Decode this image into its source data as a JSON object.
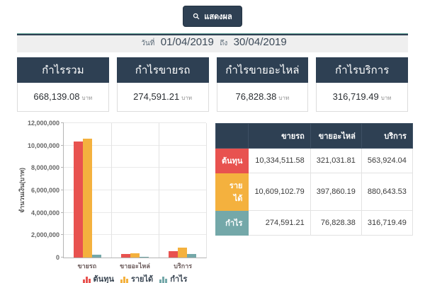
{
  "toolbar": {
    "show_button_label": "แสดงผล"
  },
  "date_bar": {
    "prefix": "วันที่",
    "start": "01/04/2019",
    "conjunction": "ถึง",
    "end": "30/04/2019"
  },
  "summary_cards": [
    {
      "title": "กำไรรวม",
      "value": "668,139.08",
      "unit": "บาท"
    },
    {
      "title": "กำไรขายรถ",
      "value": "274,591.21",
      "unit": "บาท"
    },
    {
      "title": "กำไรขายอะไหล่",
      "value": "76,828.38",
      "unit": "บาท"
    },
    {
      "title": "กำไรบริการ",
      "value": "316,719.49",
      "unit": "บาท"
    }
  ],
  "chart_data": {
    "type": "bar",
    "categories": [
      "ขายรถ",
      "ขายอะไหล่",
      "บริการ"
    ],
    "series": [
      {
        "name": "ต้นทุน",
        "color": "#e8524f",
        "values": [
          10334511.58,
          321031.81,
          563924.04
        ]
      },
      {
        "name": "รายได้",
        "color": "#f4b13e",
        "values": [
          10609102.79,
          397860.19,
          880643.53
        ]
      },
      {
        "name": "กำไร",
        "color": "#74a8a9",
        "values": [
          274591.21,
          76828.38,
          316719.49
        ]
      }
    ],
    "title": "",
    "xlabel": "",
    "ylabel": "จำนวนเงิน(บาท)",
    "ylim": [
      0,
      12000000
    ],
    "ytick_labels": [
      "0",
      "2,000,000",
      "4,000,000",
      "6,000,000",
      "8,000,000",
      "10,000,000",
      "12,000,000"
    ],
    "grid": true,
    "legend_position": "bottom"
  },
  "table": {
    "column_headers": [
      "",
      "ขายรถ",
      "ขายอะไหล่",
      "บริการ"
    ],
    "rows": [
      {
        "label": "ต้นทุน",
        "color": "#e8524f",
        "values": [
          "10,334,511.58",
          "321,031.81",
          "563,924.04"
        ]
      },
      {
        "label": "รายได้",
        "color": "#f4b13e",
        "values": [
          "10,609,102.79",
          "397,860.19",
          "880,643.53"
        ]
      },
      {
        "label": "กำไร",
        "color": "#74a8a9",
        "values": [
          "274,591.21",
          "76,828.38",
          "316,719.49"
        ]
      }
    ]
  },
  "colors": {
    "primary_dark": "#2e4053",
    "accent_teal_line": "#63a295",
    "cost_red": "#e8524f",
    "revenue_orange": "#f4b13e",
    "profit_teal": "#74a8a9",
    "date_bar_bg": "#efefef"
  }
}
